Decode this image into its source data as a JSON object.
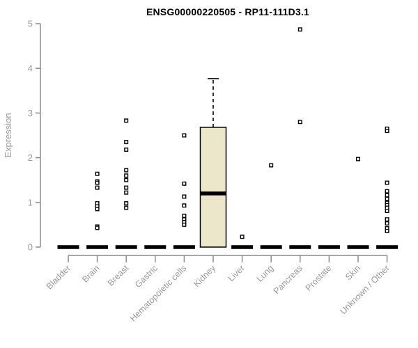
{
  "chart_data": {
    "type": "boxplot",
    "title": "ENSG00000220505 - RP11-111D3.1",
    "xlabel": "",
    "ylabel": "Expression",
    "ylim": [
      0,
      5
    ],
    "yticks": [
      0,
      1,
      2,
      3,
      4,
      5
    ],
    "grid": false,
    "legend": false,
    "categories": [
      "Bladder",
      "Brain",
      "Breast",
      "Gastric",
      "Hematopoietic cells",
      "Kidney",
      "Liver",
      "Lung",
      "Pancreas",
      "Prostate",
      "Skin",
      "Unknown / Other"
    ],
    "boxes": [
      {
        "category": "Bladder",
        "q1": 0,
        "median": 0,
        "q3": 0,
        "whisker_low": 0,
        "whisker_high": 0
      },
      {
        "category": "Brain",
        "q1": 0,
        "median": 0,
        "q3": 0,
        "whisker_low": 0,
        "whisker_high": 0
      },
      {
        "category": "Breast",
        "q1": 0,
        "median": 0,
        "q3": 0,
        "whisker_low": 0,
        "whisker_high": 0
      },
      {
        "category": "Gastric",
        "q1": 0,
        "median": 0,
        "q3": 0,
        "whisker_low": 0,
        "whisker_high": 0
      },
      {
        "category": "Hematopoietic cells",
        "q1": 0,
        "median": 0,
        "q3": 0,
        "whisker_low": 0,
        "whisker_high": 0
      },
      {
        "category": "Kidney",
        "q1": 0,
        "median": 1.2,
        "q3": 2.68,
        "whisker_low": 0,
        "whisker_high": 3.77
      },
      {
        "category": "Liver",
        "q1": 0,
        "median": 0,
        "q3": 0,
        "whisker_low": 0,
        "whisker_high": 0
      },
      {
        "category": "Lung",
        "q1": 0,
        "median": 0,
        "q3": 0,
        "whisker_low": 0,
        "whisker_high": 0
      },
      {
        "category": "Pancreas",
        "q1": 0,
        "median": 0,
        "q3": 0,
        "whisker_low": 0,
        "whisker_high": 0
      },
      {
        "category": "Prostate",
        "q1": 0,
        "median": 0,
        "q3": 0,
        "whisker_low": 0,
        "whisker_high": 0
      },
      {
        "category": "Skin",
        "q1": 0,
        "median": 0,
        "q3": 0,
        "whisker_low": 0,
        "whisker_high": 0
      },
      {
        "category": "Unknown / Other",
        "q1": 0,
        "median": 0,
        "q3": 0,
        "whisker_low": 0,
        "whisker_high": 0
      }
    ],
    "points": [
      [],
      [
        1.64,
        1.47,
        1.44,
        1.33,
        0.98,
        0.91,
        0.85,
        0.46,
        0.43
      ],
      [
        2.83,
        2.35,
        2.18,
        1.72,
        1.6,
        1.5,
        1.33,
        1.22,
        0.98,
        0.88
      ],
      [],
      [
        2.5,
        1.42,
        1.13,
        0.93,
        0.7,
        0.62,
        0.56,
        0.5
      ],
      [],
      [
        0.23
      ],
      [
        1.83
      ],
      [
        4.87,
        2.8
      ],
      [],
      [
        1.97
      ],
      [
        2.65,
        2.6,
        1.44,
        1.25,
        1.16,
        1.08,
        0.99,
        0.94,
        0.88,
        0.81,
        0.62,
        0.53,
        0.42,
        0.36
      ]
    ],
    "colors": {
      "box_fill": "#ECE7CB",
      "box_stroke": "#000000",
      "median": "#000000",
      "point_stroke": "#000000",
      "point_fill": "#ffffff",
      "axis": "#8c8c8c",
      "tick_label": "#999999",
      "title": "#000000"
    }
  }
}
